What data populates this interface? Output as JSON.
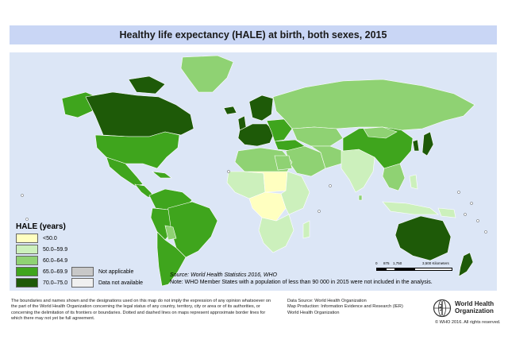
{
  "title": "Healthy life expectancy (HALE) at birth, both sexes, 2015",
  "legend": {
    "title": "HALE (years)",
    "items": [
      {
        "label": "<50.0",
        "color": "#ffffc0"
      },
      {
        "label": "50.0–59.9",
        "color": "#ccf0bc"
      },
      {
        "label": "60.0–64.9",
        "color": "#8fd273"
      },
      {
        "label": "65.0–69.9",
        "color": "#3fa51d"
      },
      {
        "label": "70.0–75.0",
        "color": "#1e5a08"
      }
    ],
    "extra_items": [
      {
        "label": "Not applicable",
        "color": "#c8c8c8"
      },
      {
        "label": "Data not available",
        "color": "#f0f0f0"
      }
    ]
  },
  "source": {
    "line1": "Source: World Health Statistics 2016, WHO",
    "line2": "Note: WHO Member States with a population of less than 90 000 in 2015 were not included in the analysis."
  },
  "scale": {
    "labels": [
      "0",
      "875",
      "1,750",
      "3,500 Kilometers"
    ]
  },
  "disclaimer": "The boundaries and names shown and the designations used on this map do not imply the expression of any opinion whatsoever on the part of the World Health Organization concerning the legal status of any country, territory, city or area or of its authorities, or concerning the delimitation of its frontiers or boundaries. Dotted and dashed lines on maps represent approximate border lines for which there may not yet be full agreement.",
  "data_source": {
    "line1": "Data Source: World Health Organization",
    "line2": "Map Production: Information Evidence and Research (IER)",
    "line3": "World Health Organization"
  },
  "logo": {
    "line1": "World Health",
    "line2": "Organization"
  },
  "copyright": "© WHO 2016. All rights reserved.",
  "colors": {
    "ocean": "#dce6f6",
    "title_bar": "#c9d6f5",
    "border": "#ffffff"
  }
}
